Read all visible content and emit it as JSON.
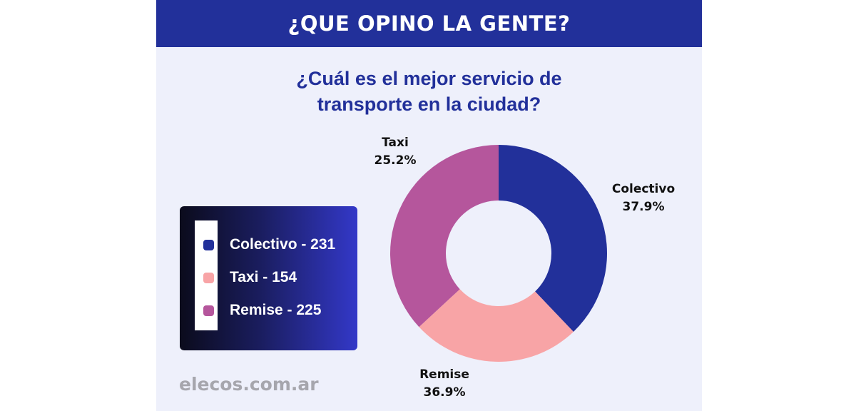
{
  "header": {
    "title": "¿QUE OPINO LA GENTE?"
  },
  "question": {
    "line1": "¿Cuál es el mejor servicio de",
    "line2": "transporte en la ciudad?"
  },
  "legend": {
    "items": [
      {
        "label": "Colectivo - 231",
        "color": "#22309a"
      },
      {
        "label": "Taxi - 154",
        "color": "#f8a4a6"
      },
      {
        "label": "Remise - 225",
        "color": "#b5569c"
      }
    ]
  },
  "source": "elecos.com.ar",
  "chart_data": {
    "type": "pie",
    "categories": [
      "Colectivo",
      "Taxi",
      "Remise"
    ],
    "values": [
      231,
      154,
      225
    ],
    "percent_labels": [
      "37.9%",
      "25.2%",
      "36.9%"
    ],
    "colors": [
      "#22309a",
      "#f8a4a6",
      "#b5569c"
    ],
    "donut": true
  }
}
